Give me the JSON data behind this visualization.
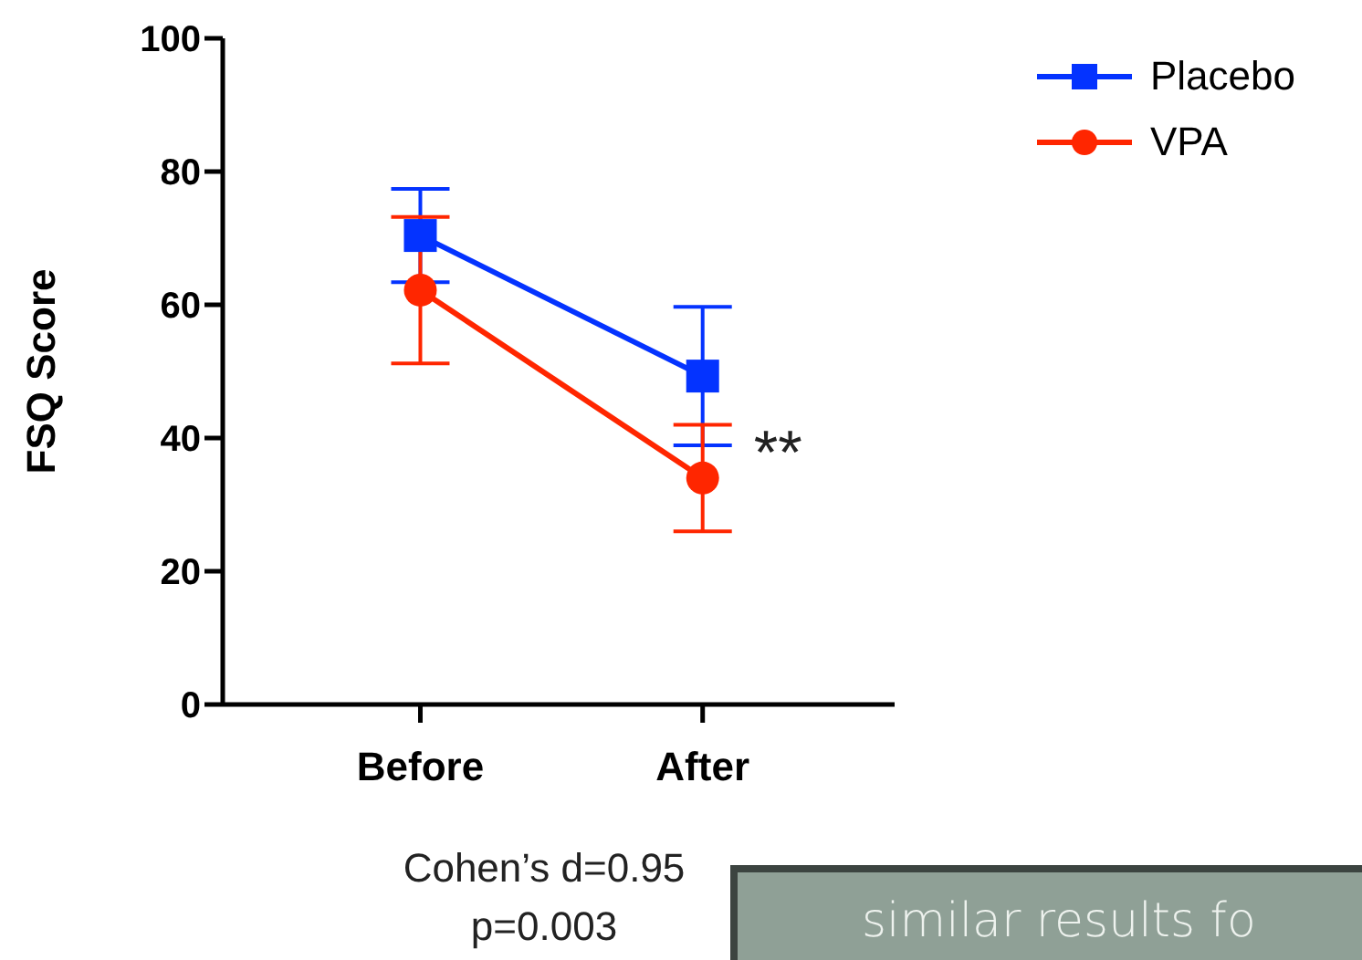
{
  "chart_data": {
    "type": "line",
    "ylabel": "FSQ Score",
    "categories": [
      "Before",
      "After"
    ],
    "ylim": [
      0,
      100
    ],
    "yticks": [
      0,
      20,
      40,
      60,
      80,
      100
    ],
    "grid": false,
    "legend": "top right",
    "series": [
      {
        "name": "Placebo",
        "color": "#0433ff",
        "marker": "square",
        "values": [
          70.4,
          49.3
        ],
        "errors": [
          7,
          10.4
        ]
      },
      {
        "name": "VPA",
        "color": "#ff2600",
        "marker": "circle",
        "values": [
          62.2,
          34
        ],
        "errors": [
          11,
          8
        ]
      }
    ],
    "annotations": [
      {
        "text": "**",
        "x": "After",
        "y": 38
      },
      "Cohen’s d=0.95",
      "p=0.003",
      "similar results fo"
    ]
  }
}
